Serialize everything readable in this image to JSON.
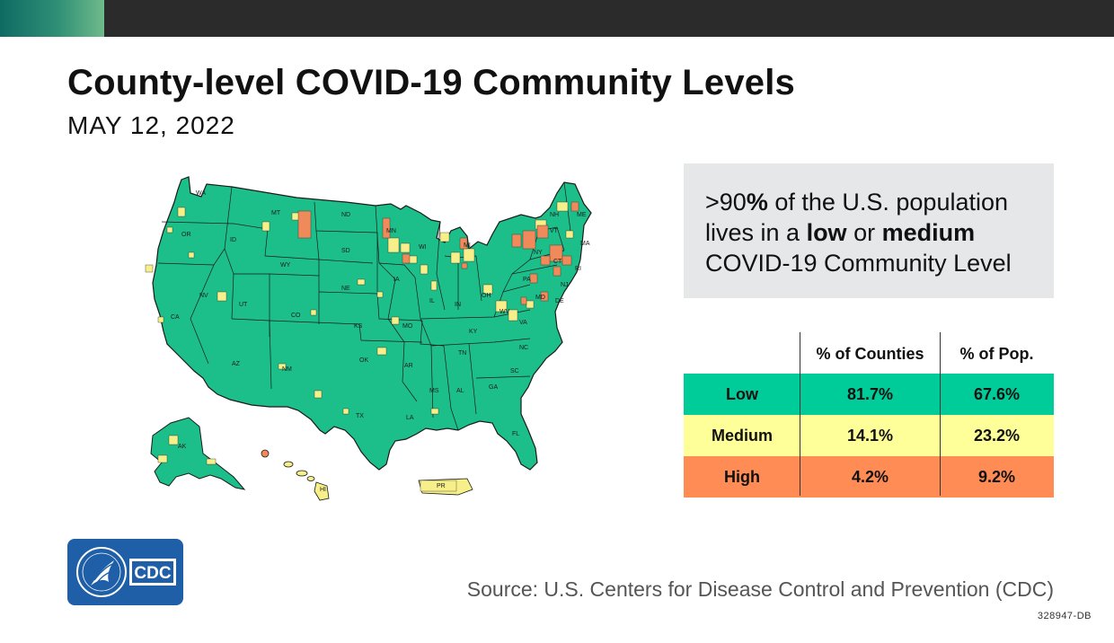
{
  "header": {
    "title": "County-level COVID-19 Community Levels",
    "date": "MAY 12, 2022"
  },
  "callout": {
    "p1": ">90",
    "pct": "%",
    "p2": " of the U.S. population lives in a ",
    "low": "low",
    "or": " or ",
    "medium": "medium",
    "p3": " COVID-19 Community Level"
  },
  "table": {
    "columns": [
      "% of Counties",
      "% of Pop."
    ],
    "rows": [
      {
        "label": "Low",
        "counties": "81.7%",
        "pop": "67.6%",
        "color": "#00cc99"
      },
      {
        "label": "Medium",
        "counties": "14.1%",
        "pop": "23.2%",
        "color": "#ffff99"
      },
      {
        "label": "High",
        "counties": "4.2%",
        "pop": "9.2%",
        "color": "#ff8c55"
      }
    ]
  },
  "map": {
    "colors": {
      "low": "#1cbf8a",
      "medium": "#f7f08a",
      "high": "#f08a5b"
    },
    "states": [
      "WA",
      "OR",
      "CA",
      "ID",
      "NV",
      "MT",
      "WY",
      "UT",
      "AZ",
      "CO",
      "NM",
      "ND",
      "SD",
      "NE",
      "KS",
      "OK",
      "TX",
      "MN",
      "IA",
      "MO",
      "AR",
      "LA",
      "WI",
      "IL",
      "MI",
      "IN",
      "OH",
      "KY",
      "TN",
      "MS",
      "AL",
      "GA",
      "FL",
      "SC",
      "NC",
      "VA",
      "WV",
      "PA",
      "NY",
      "VT",
      "NH",
      "ME",
      "MA",
      "RI",
      "CT",
      "NJ",
      "DE",
      "MD",
      "AK",
      "HI",
      "PR"
    ]
  },
  "logo": {
    "text": "CDC"
  },
  "source": "Source: U.S. Centers for Disease Control and Prevention (CDC)",
  "code": "328947-DB"
}
